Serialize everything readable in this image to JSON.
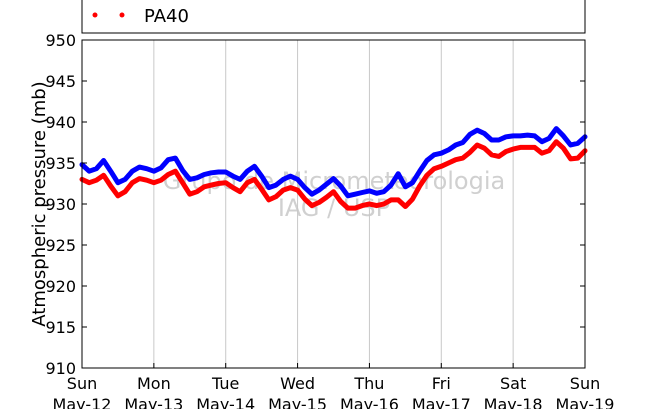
{
  "chart_data": {
    "type": "line",
    "title": "",
    "xlabel": "",
    "ylabel": "Atmospheric pressure (mb)",
    "ylim": [
      910,
      950
    ],
    "yticks": [
      910,
      915,
      920,
      925,
      930,
      935,
      940,
      945,
      950
    ],
    "xlim": [
      0,
      7
    ],
    "xticks": [
      {
        "x": 0,
        "day": "Sun",
        "date": "May-12"
      },
      {
        "x": 1,
        "day": "Mon",
        "date": "May-13"
      },
      {
        "x": 2,
        "day": "Tue",
        "date": "May-14"
      },
      {
        "x": 3,
        "day": "Wed",
        "date": "May-15"
      },
      {
        "x": 4,
        "day": "Thu",
        "date": "May-16"
      },
      {
        "x": 5,
        "day": "Fri",
        "date": "May-17"
      },
      {
        "x": 6,
        "day": "Sat",
        "date": "May-18"
      },
      {
        "x": 7,
        "day": "Sun",
        "date": "May-19"
      }
    ],
    "grid": true,
    "legend_location": "top",
    "series": [
      {
        "name": "PA40",
        "color": "#ff0000",
        "x": [
          0.0,
          0.1,
          0.2,
          0.3,
          0.4,
          0.5,
          0.6,
          0.7,
          0.8,
          0.9,
          1.0,
          1.1,
          1.2,
          1.3,
          1.4,
          1.5,
          1.6,
          1.7,
          1.8,
          1.9,
          2.0,
          2.1,
          2.2,
          2.3,
          2.4,
          2.5,
          2.6,
          2.7,
          2.8,
          2.9,
          3.0,
          3.1,
          3.2,
          3.3,
          3.4,
          3.5,
          3.6,
          3.7,
          3.8,
          3.9,
          4.0,
          4.1,
          4.2,
          4.3,
          4.4,
          4.5,
          4.6,
          4.7,
          4.8,
          4.9,
          5.0,
          5.1,
          5.2,
          5.3,
          5.4,
          5.5,
          5.6,
          5.7,
          5.8,
          5.9,
          6.0,
          6.1,
          6.2,
          6.3,
          6.4,
          6.5,
          6.6,
          6.7,
          6.8,
          6.9,
          7.0
        ],
        "y": [
          933.0,
          932.6,
          932.9,
          933.5,
          932.2,
          931.0,
          931.5,
          932.6,
          933.1,
          932.9,
          932.6,
          932.9,
          933.6,
          934.0,
          932.6,
          931.2,
          931.5,
          932.1,
          932.3,
          932.5,
          932.6,
          932.0,
          931.5,
          932.6,
          933.0,
          931.8,
          930.5,
          930.9,
          931.7,
          932.0,
          931.7,
          930.6,
          929.8,
          930.2,
          930.8,
          931.5,
          930.3,
          929.5,
          929.5,
          929.8,
          930.0,
          929.8,
          930.0,
          930.5,
          930.5,
          929.7,
          930.6,
          932.2,
          933.5,
          934.3,
          934.6,
          935.0,
          935.4,
          935.6,
          936.3,
          937.2,
          936.8,
          936.0,
          935.8,
          936.4,
          936.7,
          936.9,
          936.9,
          936.9,
          936.2,
          936.5,
          937.6,
          936.8,
          935.5,
          935.6,
          936.5
        ]
      },
      {
        "name": "",
        "color": "#0000ff",
        "x": [
          0.0,
          0.1,
          0.2,
          0.3,
          0.4,
          0.5,
          0.6,
          0.7,
          0.8,
          0.9,
          1.0,
          1.1,
          1.2,
          1.3,
          1.4,
          1.5,
          1.6,
          1.7,
          1.8,
          1.9,
          2.0,
          2.1,
          2.2,
          2.3,
          2.4,
          2.5,
          2.6,
          2.7,
          2.8,
          2.9,
          3.0,
          3.1,
          3.2,
          3.3,
          3.4,
          3.5,
          3.6,
          3.7,
          3.8,
          3.9,
          4.0,
          4.1,
          4.2,
          4.3,
          4.4,
          4.5,
          4.6,
          4.7,
          4.8,
          4.9,
          5.0,
          5.1,
          5.2,
          5.3,
          5.4,
          5.5,
          5.6,
          5.7,
          5.8,
          5.9,
          6.0,
          6.1,
          6.2,
          6.3,
          6.4,
          6.5,
          6.6,
          6.7,
          6.8,
          6.9,
          7.0
        ],
        "y": [
          934.8,
          934.0,
          934.3,
          935.3,
          934.0,
          932.6,
          933.0,
          934.0,
          934.5,
          934.3,
          934.0,
          934.4,
          935.4,
          935.6,
          934.1,
          933.0,
          933.2,
          933.6,
          933.8,
          933.9,
          933.9,
          933.4,
          933.0,
          934.0,
          934.6,
          933.4,
          932.0,
          932.3,
          933.0,
          933.4,
          933.0,
          932.0,
          931.2,
          931.7,
          932.4,
          933.1,
          932.2,
          931.0,
          931.2,
          931.4,
          931.6,
          931.3,
          931.5,
          932.3,
          933.7,
          932.1,
          932.6,
          934.0,
          935.3,
          936.0,
          936.2,
          936.6,
          937.2,
          937.5,
          938.5,
          939.0,
          938.6,
          937.8,
          937.8,
          938.2,
          938.3,
          938.3,
          938.4,
          938.3,
          937.6,
          938.0,
          939.2,
          938.3,
          937.2,
          937.4,
          938.2
        ]
      }
    ],
    "watermark": [
      "Grupo de Micrometeorologia",
      "IAG / USP"
    ]
  }
}
